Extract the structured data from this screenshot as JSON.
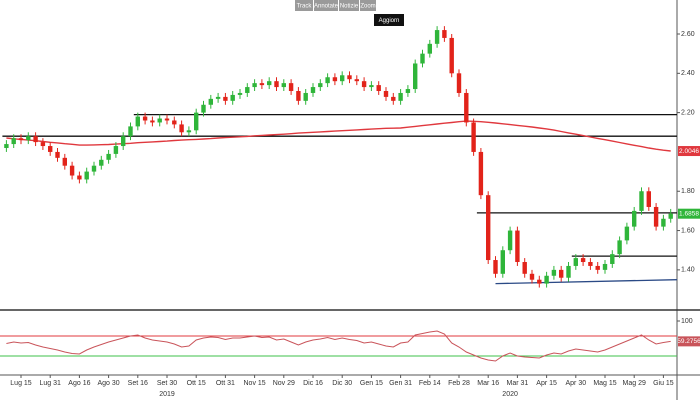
{
  "toolbar": {
    "buttons": [
      "Track",
      "Annotate",
      "Notizie",
      "Zoom"
    ],
    "refresh": "Aggiorn"
  },
  "chart_data": [
    {
      "type": "candlestick",
      "categories": [
        null,
        null,
        "Lug 15",
        null,
        null,
        null,
        "Lug 31",
        null,
        null,
        null,
        "Ago 16",
        null,
        null,
        null,
        "Ago 30",
        null,
        null,
        null,
        "Set 16",
        null,
        null,
        null,
        "Set 30",
        null,
        null,
        null,
        "Ott 15",
        null,
        null,
        null,
        "Ott 31",
        null,
        null,
        null,
        "Nov 15",
        null,
        null,
        null,
        "Nov 29",
        null,
        null,
        null,
        "Dic 16",
        null,
        null,
        null,
        "Dic 30",
        null,
        null,
        null,
        "Gen 15",
        null,
        null,
        null,
        "Gen 31",
        null,
        null,
        null,
        "Feb 14",
        null,
        null,
        null,
        "Feb 28",
        null,
        null,
        null,
        "Mar 16",
        null,
        null,
        null,
        "Mar 31",
        null,
        null,
        null,
        "Apr 15",
        null,
        null,
        null,
        "Apr 30",
        null,
        null,
        null,
        "Mag 15",
        null,
        null,
        null,
        "Mag 29",
        null,
        null,
        null,
        "Giu 15",
        null
      ],
      "category_years": [
        null,
        null,
        null,
        null,
        null,
        null,
        null,
        null,
        null,
        null,
        null,
        null,
        null,
        null,
        null,
        null,
        null,
        null,
        null,
        null,
        null,
        null,
        "2019",
        null,
        null,
        null,
        null,
        null,
        null,
        null,
        null,
        null,
        null,
        null,
        null,
        null,
        null,
        null,
        null,
        null,
        null,
        null,
        null,
        null,
        null,
        null,
        null,
        null,
        null,
        null,
        null,
        null,
        null,
        null,
        null,
        null,
        null,
        null,
        null,
        null,
        null,
        null,
        null,
        null,
        null,
        null,
        null,
        null,
        null,
        "2020",
        null,
        null,
        null,
        null,
        null,
        null,
        null,
        null,
        null,
        null,
        null,
        null,
        null,
        null,
        null,
        null,
        null,
        null,
        null,
        null,
        null,
        null
      ],
      "open": [
        2.02,
        2.04,
        2.07,
        2.06,
        2.08,
        2.05,
        2.03,
        2.0,
        1.97,
        1.93,
        1.88,
        1.86,
        1.9,
        1.93,
        1.96,
        1.99,
        2.03,
        2.08,
        2.13,
        2.18,
        2.16,
        2.15,
        2.17,
        2.16,
        2.14,
        2.1,
        2.11,
        2.2,
        2.24,
        2.27,
        2.28,
        2.26,
        2.29,
        2.3,
        2.33,
        2.35,
        2.34,
        2.36,
        2.33,
        2.35,
        2.31,
        2.26,
        2.3,
        2.33,
        2.35,
        2.38,
        2.36,
        2.39,
        2.37,
        2.36,
        2.33,
        2.34,
        2.31,
        2.28,
        2.26,
        2.3,
        2.32,
        2.45,
        2.5,
        2.55,
        2.62,
        2.58,
        2.4,
        2.3,
        2.15,
        2.0,
        1.78,
        1.45,
        1.38,
        1.5,
        1.6,
        1.44,
        1.38,
        1.35,
        1.33,
        1.37,
        1.4,
        1.36,
        1.42,
        1.46,
        1.44,
        1.42,
        1.4,
        1.43,
        1.48,
        1.55,
        1.62,
        1.7,
        1.8,
        1.72,
        1.62,
        1.66
      ],
      "high": [
        2.06,
        2.09,
        2.09,
        2.1,
        2.1,
        2.07,
        2.05,
        2.02,
        1.99,
        1.95,
        1.9,
        1.92,
        1.95,
        1.98,
        2.01,
        2.05,
        2.1,
        2.15,
        2.2,
        2.2,
        2.18,
        2.19,
        2.19,
        2.18,
        2.16,
        2.13,
        2.22,
        2.26,
        2.29,
        2.3,
        2.3,
        2.31,
        2.32,
        2.35,
        2.37,
        2.37,
        2.38,
        2.38,
        2.37,
        2.37,
        2.33,
        2.32,
        2.35,
        2.37,
        2.4,
        2.4,
        2.41,
        2.41,
        2.39,
        2.38,
        2.36,
        2.36,
        2.33,
        2.3,
        2.32,
        2.34,
        2.47,
        2.52,
        2.57,
        2.64,
        2.64,
        2.6,
        2.42,
        2.32,
        2.17,
        2.02,
        1.8,
        1.47,
        1.52,
        1.62,
        1.62,
        1.46,
        1.4,
        1.37,
        1.39,
        1.42,
        1.42,
        1.44,
        1.48,
        1.48,
        1.46,
        1.44,
        1.45,
        1.5,
        1.57,
        1.64,
        1.72,
        1.82,
        1.82,
        1.74,
        1.68,
        1.71
      ],
      "low": [
        2.0,
        2.02,
        2.04,
        2.04,
        2.03,
        2.01,
        1.98,
        1.95,
        1.91,
        1.86,
        1.84,
        1.84,
        1.88,
        1.91,
        1.94,
        1.97,
        2.01,
        2.06,
        2.11,
        2.14,
        2.13,
        2.13,
        2.14,
        2.12,
        2.08,
        2.08,
        2.09,
        2.18,
        2.22,
        2.25,
        2.24,
        2.24,
        2.27,
        2.28,
        2.31,
        2.32,
        2.32,
        2.31,
        2.31,
        2.29,
        2.24,
        2.24,
        2.28,
        2.31,
        2.33,
        2.34,
        2.34,
        2.35,
        2.34,
        2.31,
        2.31,
        2.29,
        2.26,
        2.24,
        2.24,
        2.28,
        2.3,
        2.43,
        2.48,
        2.53,
        2.56,
        2.38,
        2.28,
        2.13,
        1.98,
        1.76,
        1.43,
        1.36,
        1.36,
        1.48,
        1.42,
        1.36,
        1.33,
        1.31,
        1.31,
        1.35,
        1.34,
        1.34,
        1.4,
        1.42,
        1.4,
        1.38,
        1.38,
        1.41,
        1.46,
        1.53,
        1.6,
        1.68,
        1.7,
        1.6,
        1.6,
        1.64
      ],
      "close": [
        2.04,
        2.07,
        2.06,
        2.08,
        2.05,
        2.03,
        2.0,
        1.97,
        1.93,
        1.88,
        1.86,
        1.9,
        1.93,
        1.96,
        1.99,
        2.03,
        2.08,
        2.13,
        2.18,
        2.16,
        2.15,
        2.17,
        2.16,
        2.14,
        2.1,
        2.11,
        2.2,
        2.24,
        2.27,
        2.28,
        2.26,
        2.29,
        2.3,
        2.33,
        2.35,
        2.34,
        2.36,
        2.33,
        2.35,
        2.31,
        2.26,
        2.3,
        2.33,
        2.35,
        2.38,
        2.36,
        2.39,
        2.37,
        2.36,
        2.33,
        2.34,
        2.31,
        2.28,
        2.26,
        2.3,
        2.32,
        2.45,
        2.5,
        2.55,
        2.62,
        2.58,
        2.4,
        2.3,
        2.15,
        2.0,
        1.78,
        1.45,
        1.38,
        1.5,
        1.6,
        1.44,
        1.38,
        1.35,
        1.33,
        1.37,
        1.4,
        1.36,
        1.42,
        1.46,
        1.44,
        1.42,
        1.4,
        1.43,
        1.48,
        1.55,
        1.62,
        1.7,
        1.8,
        1.72,
        1.62,
        1.66,
        1.6858
      ],
      "up_color": "#2fb53a",
      "down_color": "#e2231a",
      "last_color": "#2fb53a",
      "ma": {
        "color": "#e0383e",
        "values": [
          2.071,
          2.067,
          2.064,
          2.06,
          2.057,
          2.053,
          2.049,
          2.046,
          2.042,
          2.039,
          2.035,
          2.035,
          2.036,
          2.037,
          2.038,
          2.04,
          2.042,
          2.044,
          2.047,
          2.049,
          2.051,
          2.053,
          2.055,
          2.058,
          2.06,
          2.062,
          2.064,
          2.066,
          2.068,
          2.071,
          2.073,
          2.075,
          2.077,
          2.079,
          2.082,
          2.084,
          2.086,
          2.088,
          2.09,
          2.093,
          2.096,
          2.098,
          2.1,
          2.102,
          2.104,
          2.106,
          2.108,
          2.11,
          2.112,
          2.114,
          2.116,
          2.118,
          2.12,
          2.121,
          2.122,
          2.126,
          2.13,
          2.134,
          2.138,
          2.142,
          2.146,
          2.15,
          2.154,
          2.157,
          2.156,
          2.154,
          2.151,
          2.147,
          2.143,
          2.139,
          2.135,
          2.131,
          2.127,
          2.122,
          2.117,
          2.111,
          2.104,
          2.097,
          2.09,
          2.083,
          2.076,
          2.069,
          2.062,
          2.055,
          2.048,
          2.041,
          2.034,
          2.027,
          2.02,
          2.014,
          2.009,
          2.0046
        ]
      },
      "levels": [
        {
          "value": 2.19,
          "start": 18
        },
        {
          "value": 2.08,
          "start": 0
        },
        {
          "value": 1.69,
          "start": 65
        },
        {
          "value": 1.47,
          "start": 78
        }
      ],
      "level_color": "#111111",
      "trendline": {
        "start": 67,
        "end": 91,
        "values": [
          1.33,
          1.35
        ],
        "color": "#2b4a86"
      },
      "ylim": [
        1.206,
        2.773
      ],
      "yticks": [
        {
          "value": 2.6,
          "label": "2.60"
        },
        {
          "value": 2.4,
          "label": "2.40"
        },
        {
          "value": 2.2,
          "label": "2.20"
        },
        {
          "value": 1.8,
          "label": "1.80"
        },
        {
          "value": 1.6,
          "label": "1.60"
        },
        {
          "value": 1.4,
          "label": "1.40"
        }
      ]
    },
    {
      "type": "line",
      "color": "#c9545a",
      "values": [
        55,
        58,
        56,
        57,
        52,
        48,
        45,
        42,
        38,
        35,
        34,
        42,
        48,
        53,
        58,
        62,
        66,
        70,
        72,
        66,
        62,
        60,
        58,
        54,
        48,
        50,
        62,
        66,
        68,
        67,
        63,
        66,
        66,
        68,
        70,
        67,
        68,
        62,
        64,
        58,
        52,
        58,
        62,
        64,
        67,
        63,
        66,
        63,
        61,
        56,
        58,
        54,
        50,
        48,
        56,
        58,
        72,
        75,
        78,
        80,
        74,
        56,
        48,
        38,
        32,
        26,
        22,
        20,
        30,
        36,
        30,
        28,
        27,
        26,
        32,
        36,
        34,
        40,
        44,
        42,
        40,
        38,
        42,
        48,
        54,
        60,
        66,
        72,
        62,
        54,
        57,
        59.2756
      ],
      "levels": [
        {
          "value": 70,
          "color": "#e0383e"
        },
        {
          "value": 30,
          "color": "#3cc24a"
        }
      ],
      "ylim": [
        0,
        100
      ],
      "yticks": [
        100
      ]
    }
  ]
}
